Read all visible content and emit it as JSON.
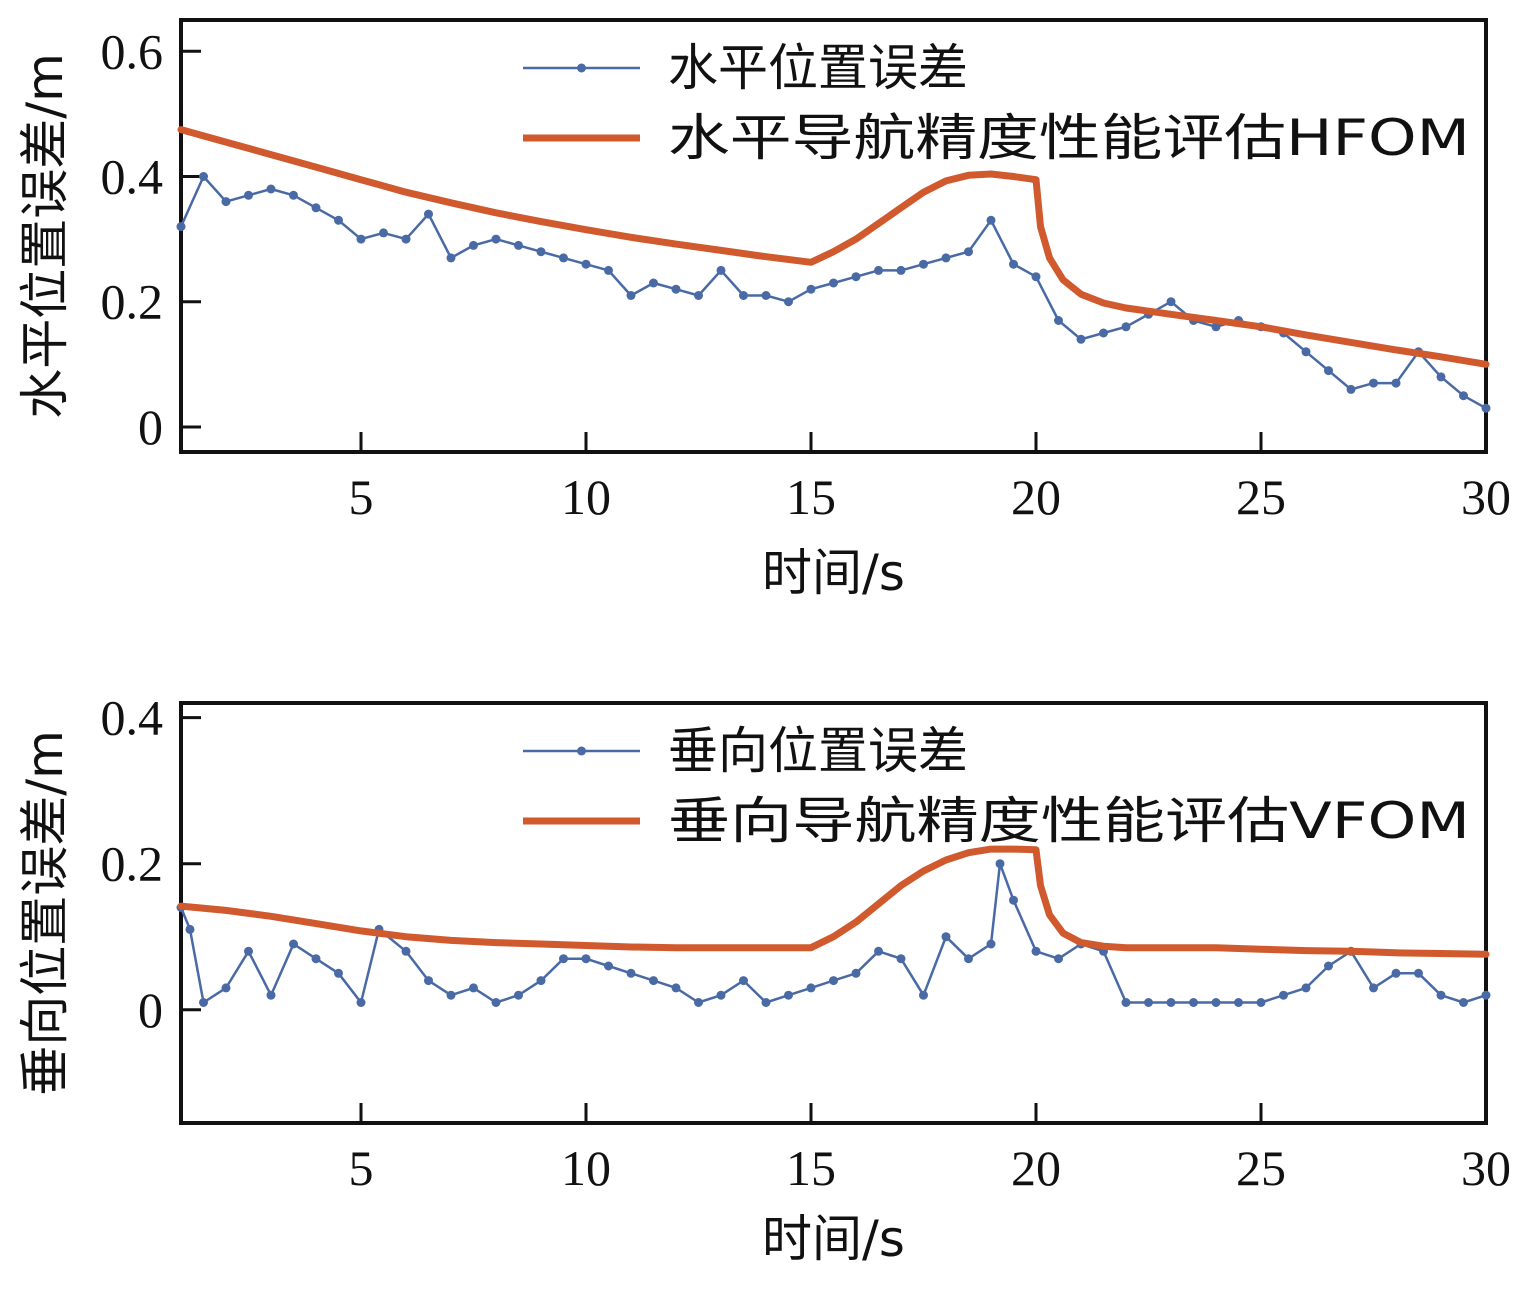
{
  "colors": {
    "error": "#4a6aa5",
    "fom": "#d05a2e",
    "axis": "#111111"
  },
  "chart_data": [
    {
      "type": "line",
      "xlabel": "时间/s",
      "ylabel": "水平位置误差/m",
      "xlim": [
        1,
        30
      ],
      "ylim": [
        -0.04,
        0.65
      ],
      "xticks": [
        5,
        10,
        15,
        20,
        25,
        30
      ],
      "yticks": [
        0,
        0.2,
        0.4,
        0.6
      ],
      "ytick_labels": [
        "0",
        "0.2",
        "0.4",
        "0.6"
      ],
      "grid": false,
      "legend_position": "top-right",
      "series": [
        {
          "name": "水平位置误差",
          "style": "line-with-markers",
          "color": "#4a6aa5",
          "x": [
            1.0,
            1.5,
            2.0,
            2.5,
            3.0,
            3.5,
            4.0,
            4.5,
            5.0,
            5.5,
            6.0,
            6.5,
            7.0,
            7.5,
            8.0,
            8.5,
            9.0,
            9.5,
            10.0,
            10.5,
            11.0,
            11.5,
            12.0,
            12.5,
            13.0,
            13.5,
            14.0,
            14.5,
            15.0,
            15.5,
            16.0,
            16.5,
            17.0,
            17.5,
            18.0,
            18.5,
            19.0,
            19.5,
            20.0,
            20.5,
            21.0,
            21.5,
            22.0,
            22.5,
            23.0,
            23.5,
            24.0,
            24.5,
            25.0,
            25.5,
            26.0,
            26.5,
            27.0,
            27.5,
            28.0,
            28.5,
            29.0,
            29.5,
            30.0
          ],
          "y": [
            0.32,
            0.4,
            0.36,
            0.37,
            0.38,
            0.37,
            0.35,
            0.33,
            0.3,
            0.31,
            0.3,
            0.34,
            0.27,
            0.29,
            0.3,
            0.29,
            0.28,
            0.27,
            0.26,
            0.25,
            0.21,
            0.23,
            0.22,
            0.21,
            0.25,
            0.21,
            0.21,
            0.2,
            0.22,
            0.23,
            0.24,
            0.25,
            0.25,
            0.26,
            0.27,
            0.28,
            0.33,
            0.26,
            0.24,
            0.17,
            0.14,
            0.15,
            0.16,
            0.18,
            0.2,
            0.17,
            0.16,
            0.17,
            0.16,
            0.15,
            0.12,
            0.09,
            0.06,
            0.07,
            0.07,
            0.12,
            0.08,
            0.05,
            0.03
          ]
        },
        {
          "name": "水平导航精度性能评估HFOM",
          "style": "thick-line",
          "color": "#d05a2e",
          "x": [
            1.0,
            2.0,
            3.0,
            4.0,
            5.0,
            6.0,
            7.0,
            8.0,
            9.0,
            10.0,
            11.0,
            12.0,
            13.0,
            14.0,
            15.0,
            15.5,
            16.0,
            16.5,
            17.0,
            17.5,
            18.0,
            18.5,
            19.0,
            19.5,
            20.0,
            20.1,
            20.3,
            20.6,
            21.0,
            21.5,
            22.0,
            23.0,
            24.0,
            25.0,
            26.0,
            27.0,
            28.0,
            29.0,
            30.0
          ],
          "y": [
            0.475,
            0.455,
            0.435,
            0.415,
            0.395,
            0.375,
            0.358,
            0.342,
            0.328,
            0.315,
            0.303,
            0.292,
            0.282,
            0.272,
            0.263,
            0.28,
            0.3,
            0.325,
            0.35,
            0.375,
            0.393,
            0.402,
            0.404,
            0.4,
            0.395,
            0.32,
            0.27,
            0.235,
            0.212,
            0.198,
            0.19,
            0.18,
            0.17,
            0.16,
            0.147,
            0.135,
            0.123,
            0.112,
            0.1
          ]
        }
      ]
    },
    {
      "type": "line",
      "xlabel": "时间/s",
      "ylabel": "垂向位置误差/m",
      "xlim": [
        1,
        30
      ],
      "ylim": [
        -0.155,
        0.42
      ],
      "xticks": [
        5,
        10,
        15,
        20,
        25,
        30
      ],
      "yticks": [
        0,
        0.2,
        0.4
      ],
      "ytick_labels": [
        "0",
        "0.2",
        "0.4"
      ],
      "grid": false,
      "legend_position": "top-right",
      "series": [
        {
          "name": "垂向位置误差",
          "style": "line-with-markers",
          "color": "#4a6aa5",
          "x": [
            1.0,
            1.2,
            1.5,
            2.0,
            2.5,
            3.0,
            3.5,
            4.0,
            4.5,
            5.0,
            5.4,
            6.0,
            6.5,
            7.0,
            7.5,
            8.0,
            8.5,
            9.0,
            9.5,
            10.0,
            10.5,
            11.0,
            11.5,
            12.0,
            12.5,
            13.0,
            13.5,
            14.0,
            14.5,
            15.0,
            15.5,
            16.0,
            16.5,
            17.0,
            17.5,
            18.0,
            18.5,
            19.0,
            19.2,
            19.5,
            20.0,
            20.5,
            21.0,
            21.5,
            22.0,
            22.5,
            23.0,
            23.5,
            24.0,
            24.5,
            25.0,
            25.5,
            26.0,
            26.5,
            27.0,
            27.5,
            28.0,
            28.5,
            29.0,
            29.5,
            30.0
          ],
          "y": [
            0.14,
            0.11,
            0.01,
            0.03,
            0.08,
            0.02,
            0.09,
            0.07,
            0.05,
            0.01,
            0.11,
            0.08,
            0.04,
            0.02,
            0.03,
            0.01,
            0.02,
            0.04,
            0.07,
            0.07,
            0.06,
            0.05,
            0.04,
            0.03,
            0.01,
            0.02,
            0.04,
            0.01,
            0.02,
            0.03,
            0.04,
            0.05,
            0.08,
            0.07,
            0.02,
            0.1,
            0.07,
            0.09,
            0.2,
            0.15,
            0.08,
            0.07,
            0.09,
            0.08,
            0.01,
            0.01,
            0.01,
            0.01,
            0.01,
            0.01,
            0.01,
            0.02,
            0.03,
            0.06,
            0.08,
            0.03,
            0.05,
            0.05,
            0.02,
            0.01,
            0.02
          ]
        },
        {
          "name": "垂向导航精度性能评估VFOM",
          "style": "thick-line",
          "color": "#d05a2e",
          "x": [
            1.0,
            2.0,
            3.0,
            4.0,
            5.0,
            6.0,
            7.0,
            8.0,
            9.0,
            10.0,
            11.0,
            12.0,
            13.0,
            14.0,
            15.0,
            15.5,
            16.0,
            16.5,
            17.0,
            17.5,
            18.0,
            18.5,
            19.0,
            19.5,
            20.0,
            20.1,
            20.3,
            20.6,
            21.0,
            21.5,
            22.0,
            23.0,
            24.0,
            25.0,
            26.0,
            27.0,
            28.0,
            29.0,
            30.0
          ],
          "y": [
            0.142,
            0.136,
            0.128,
            0.118,
            0.108,
            0.1,
            0.095,
            0.092,
            0.09,
            0.088,
            0.086,
            0.085,
            0.085,
            0.085,
            0.085,
            0.1,
            0.12,
            0.145,
            0.17,
            0.19,
            0.205,
            0.215,
            0.22,
            0.22,
            0.219,
            0.17,
            0.13,
            0.105,
            0.092,
            0.087,
            0.085,
            0.085,
            0.085,
            0.083,
            0.081,
            0.08,
            0.078,
            0.077,
            0.076
          ]
        }
      ]
    }
  ]
}
